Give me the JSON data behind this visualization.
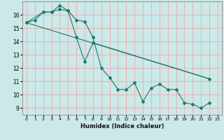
{
  "xlabel": "Humidex (Indice chaleur)",
  "xlim": [
    -0.5,
    23.5
  ],
  "ylim": [
    8.5,
    17.0
  ],
  "yticks": [
    9,
    10,
    11,
    12,
    13,
    14,
    15,
    16
  ],
  "xticks": [
    0,
    1,
    2,
    3,
    4,
    5,
    6,
    7,
    8,
    9,
    10,
    11,
    12,
    13,
    14,
    15,
    16,
    17,
    18,
    19,
    20,
    21,
    22,
    23
  ],
  "bg_color": "#cce8e8",
  "grid_color": "#f0a0a0",
  "line_color": "#1a7a6e",
  "line1_x": [
    0,
    1,
    2,
    3,
    4,
    5,
    6,
    7,
    8,
    9,
    10,
    11,
    12,
    13,
    14,
    15,
    16,
    17,
    18,
    19,
    20,
    21,
    22
  ],
  "line1_y": [
    15.4,
    15.6,
    16.2,
    16.2,
    16.4,
    16.3,
    15.6,
    15.5,
    14.3,
    12.0,
    11.3,
    10.4,
    10.4,
    10.9,
    9.5,
    10.5,
    10.8,
    10.4,
    10.4,
    9.4,
    9.3,
    9.0,
    9.4
  ],
  "line2_x": [
    0,
    2,
    3,
    4,
    5,
    6,
    7,
    8,
    22
  ],
  "line2_y": [
    15.4,
    16.2,
    16.2,
    16.7,
    16.3,
    14.3,
    12.5,
    13.9,
    11.2
  ],
  "line3_x": [
    0,
    22
  ],
  "line3_y": [
    15.4,
    11.2
  ]
}
